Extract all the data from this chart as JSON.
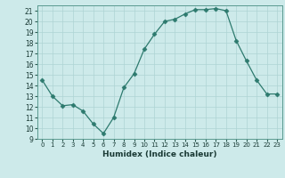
{
  "x": [
    0,
    1,
    2,
    3,
    4,
    5,
    6,
    7,
    8,
    9,
    10,
    11,
    12,
    13,
    14,
    15,
    16,
    17,
    18,
    19,
    20,
    21,
    22,
    23
  ],
  "y": [
    14.5,
    13.0,
    12.1,
    12.2,
    11.6,
    10.4,
    9.5,
    11.0,
    13.8,
    15.1,
    17.4,
    18.8,
    20.0,
    20.2,
    20.7,
    21.1,
    21.1,
    21.2,
    21.0,
    18.2,
    16.3,
    14.5,
    13.2,
    13.2
  ],
  "xlabel": "Humidex (Indice chaleur)",
  "line_color": "#2d7a6e",
  "marker": "D",
  "marker_size": 2.5,
  "bg_color": "#cdeaea",
  "grid_color": "#aed4d4",
  "ylim": [
    9,
    21.5
  ],
  "xlim": [
    -0.5,
    23.5
  ],
  "yticks": [
    9,
    10,
    11,
    12,
    13,
    14,
    15,
    16,
    17,
    18,
    19,
    20,
    21
  ],
  "xticks": [
    0,
    1,
    2,
    3,
    4,
    5,
    6,
    7,
    8,
    9,
    10,
    11,
    12,
    13,
    14,
    15,
    16,
    17,
    18,
    19,
    20,
    21,
    22,
    23
  ]
}
